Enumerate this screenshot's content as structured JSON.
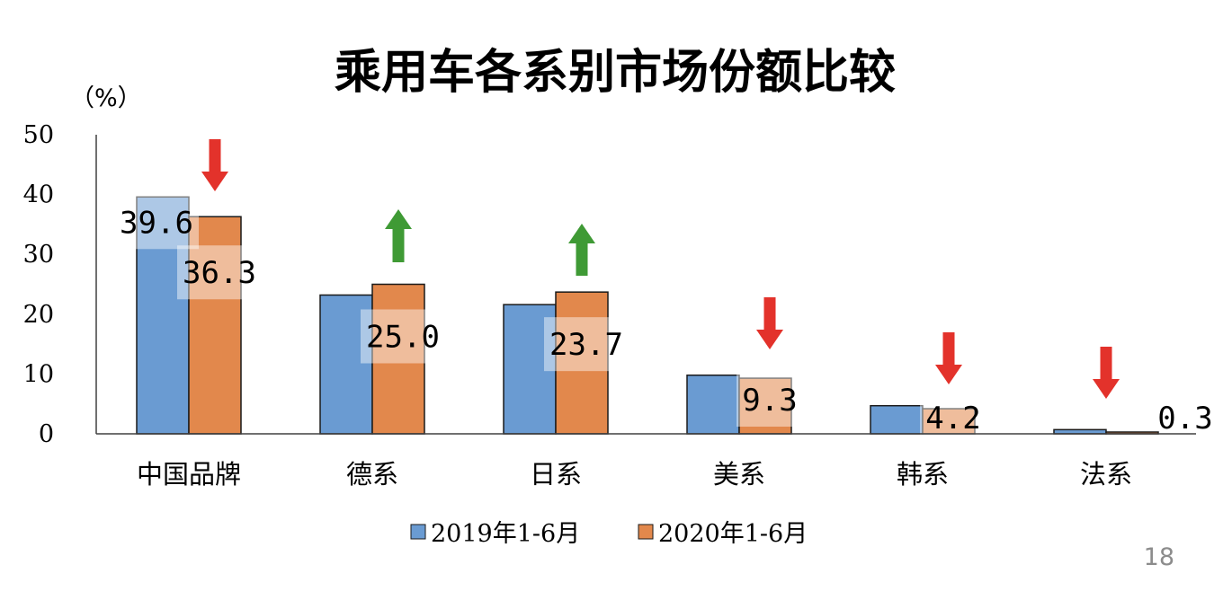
{
  "page_number": "18",
  "unit_label": "（%）",
  "colors": {
    "series_2019": "#6a9bd2",
    "series_2020": "#e2884c",
    "arrow_down": "#e3322b",
    "arrow_up": "#3f9a35",
    "axis": "#404040"
  },
  "chart_data": {
    "type": "bar",
    "title": "乘用车各系别市场份额比较",
    "xlabel": "",
    "ylabel": "（%）",
    "ylim": [
      0,
      50
    ],
    "yticks": [
      "0",
      "10",
      "20",
      "30",
      "40",
      "50"
    ],
    "categories": [
      "中国品牌",
      "德系",
      "日系",
      "美系",
      "韩系",
      "法系"
    ],
    "series": [
      {
        "name": "2019年1-6月",
        "values": [
          39.6,
          23.2,
          21.6,
          9.8,
          4.7,
          0.7
        ],
        "data_labels": [
          "39.6",
          "",
          "",
          "",
          "",
          ""
        ]
      },
      {
        "name": "2020年1-6月",
        "values": [
          36.3,
          25.0,
          23.7,
          9.3,
          4.2,
          0.3
        ],
        "data_labels": [
          "36.3",
          "25.0",
          "23.7",
          "9.3",
          "4.2",
          "0.3"
        ]
      }
    ],
    "trend_arrows": [
      "down",
      "up",
      "up",
      "down",
      "down",
      "down"
    ],
    "legend_position": "bottom",
    "grid": false
  }
}
